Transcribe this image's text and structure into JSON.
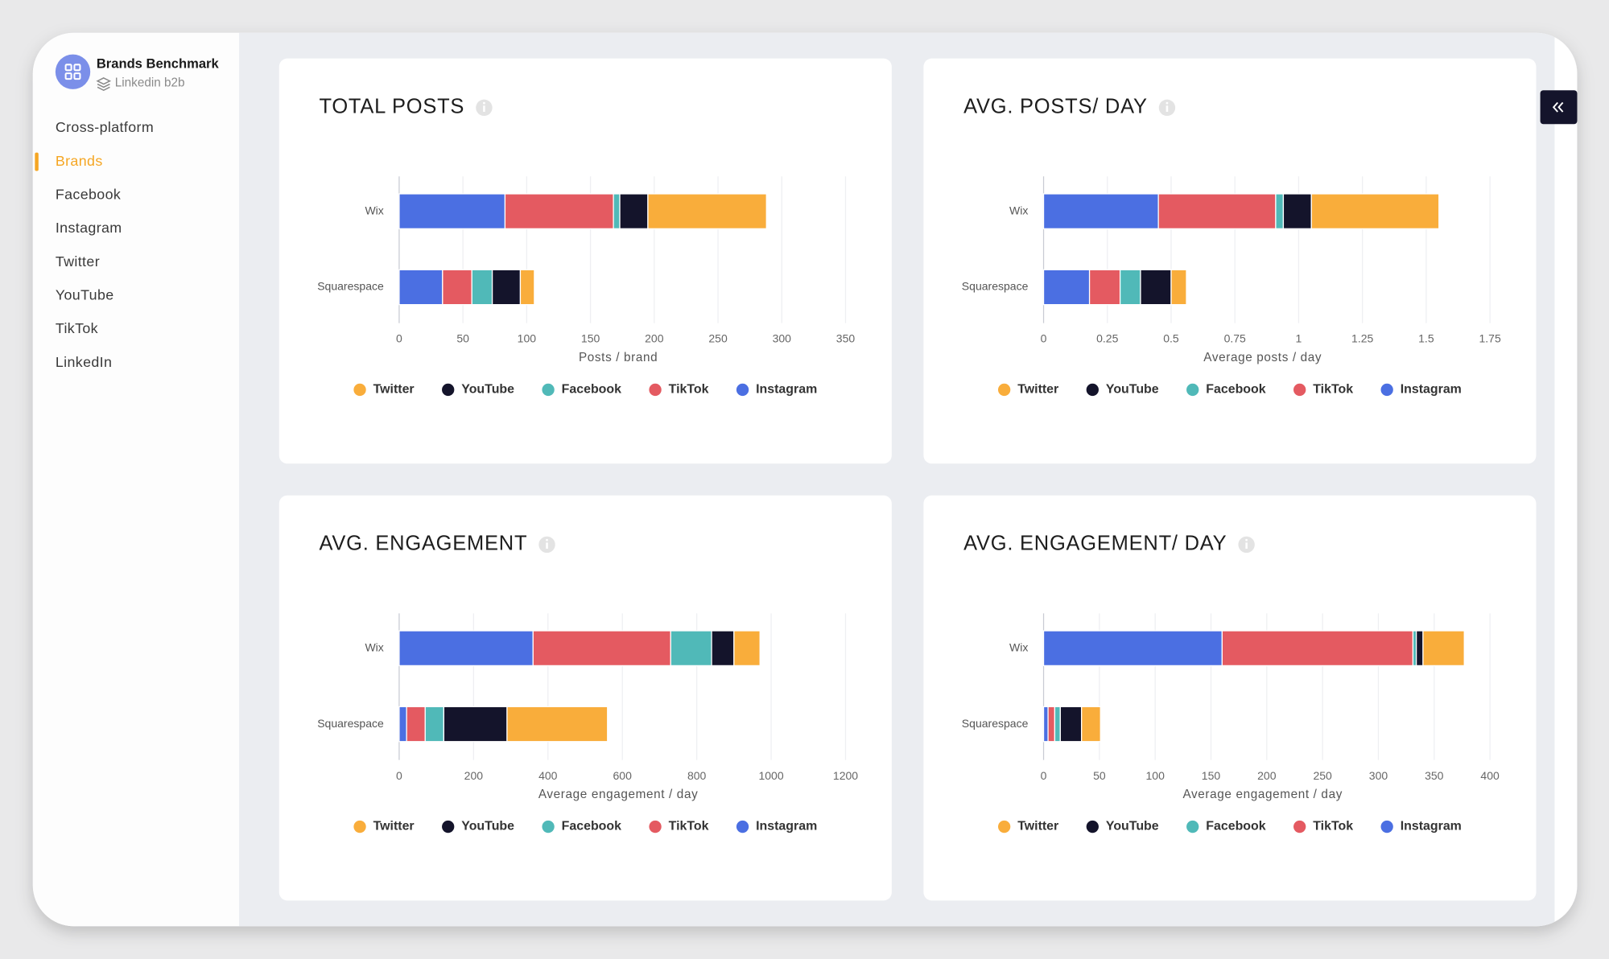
{
  "sidebar": {
    "title": "Brands Benchmark",
    "subtitle": "Linkedin b2b",
    "nav": [
      "Cross-platform",
      "Brands",
      "Facebook",
      "Instagram",
      "Twitter",
      "YouTube",
      "TikTok",
      "LinkedIn"
    ]
  },
  "chart_data": [
    {
      "type": "bar",
      "orientation": "horizontal",
      "stacked": true,
      "title": "TOTAL POSTS",
      "x_label": "Posts / brand",
      "categories": [
        "Wix",
        "Squarespace"
      ],
      "series": [
        {
          "name": "Twitter",
          "color": "#f9ad3b",
          "values": [
            93,
            11
          ]
        },
        {
          "name": "YouTube",
          "color": "#14142b",
          "values": [
            22,
            22
          ]
        },
        {
          "name": "Facebook",
          "color": "#50b9b8",
          "values": [
            5,
            16
          ]
        },
        {
          "name": "TikTok",
          "color": "#e45a61",
          "values": [
            85,
            23
          ]
        },
        {
          "name": "Instagram",
          "color": "#4b6fe2",
          "values": [
            83,
            34
          ]
        }
      ],
      "xlim": [
        0,
        350
      ],
      "xticks": [
        0,
        50,
        100,
        150,
        200,
        250,
        300,
        350
      ],
      "grid": true,
      "legend": "bottom"
    },
    {
      "type": "bar",
      "orientation": "horizontal",
      "stacked": true,
      "title": "AVG. POSTS/ DAY",
      "x_label": "Average posts / day",
      "categories": [
        "Wix",
        "Squarespace"
      ],
      "series": [
        {
          "name": "Twitter",
          "color": "#f9ad3b",
          "values": [
            0.5,
            0.06
          ]
        },
        {
          "name": "YouTube",
          "color": "#14142b",
          "values": [
            0.11,
            0.12
          ]
        },
        {
          "name": "Facebook",
          "color": "#50b9b8",
          "values": [
            0.03,
            0.08
          ]
        },
        {
          "name": "TikTok",
          "color": "#e45a61",
          "values": [
            0.46,
            0.12
          ]
        },
        {
          "name": "Instagram",
          "color": "#4b6fe2",
          "values": [
            0.45,
            0.18
          ]
        }
      ],
      "xlim": [
        0,
        1.75
      ],
      "xticks": [
        0,
        0.25,
        0.5,
        0.75,
        1,
        1.25,
        1.5,
        1.75
      ],
      "grid": true,
      "legend": "bottom"
    },
    {
      "type": "bar",
      "orientation": "horizontal",
      "stacked": true,
      "title": "AVG. ENGAGEMENT",
      "x_label": "Average engagement / day",
      "categories": [
        "Wix",
        "Squarespace"
      ],
      "series": [
        {
          "name": "Twitter",
          "color": "#f9ad3b",
          "values": [
            70,
            270
          ]
        },
        {
          "name": "YouTube",
          "color": "#14142b",
          "values": [
            60,
            170
          ]
        },
        {
          "name": "Facebook",
          "color": "#50b9b8",
          "values": [
            110,
            50
          ]
        },
        {
          "name": "TikTok",
          "color": "#e45a61",
          "values": [
            370,
            50
          ]
        },
        {
          "name": "Instagram",
          "color": "#4b6fe2",
          "values": [
            360,
            20
          ]
        }
      ],
      "xlim": [
        0,
        1200
      ],
      "xticks": [
        0,
        200,
        400,
        600,
        800,
        1000,
        1200
      ],
      "grid": true,
      "legend": "bottom"
    },
    {
      "type": "bar",
      "orientation": "horizontal",
      "stacked": true,
      "title": "AVG. ENGAGEMENT/ DAY",
      "x_label": "Average engagement / day",
      "categories": [
        "Wix",
        "Squarespace"
      ],
      "series": [
        {
          "name": "Twitter",
          "color": "#f9ad3b",
          "values": [
            37,
            17
          ]
        },
        {
          "name": "YouTube",
          "color": "#14142b",
          "values": [
            6,
            19
          ]
        },
        {
          "name": "Facebook",
          "color": "#50b9b8",
          "values": [
            3,
            5
          ]
        },
        {
          "name": "TikTok",
          "color": "#e45a61",
          "values": [
            171,
            6
          ]
        },
        {
          "name": "Instagram",
          "color": "#4b6fe2",
          "values": [
            160,
            4
          ]
        }
      ],
      "xlim": [
        0,
        400
      ],
      "xticks": [
        0,
        50,
        100,
        150,
        200,
        250,
        300,
        350,
        400
      ],
      "grid": true,
      "legend": "bottom"
    }
  ]
}
